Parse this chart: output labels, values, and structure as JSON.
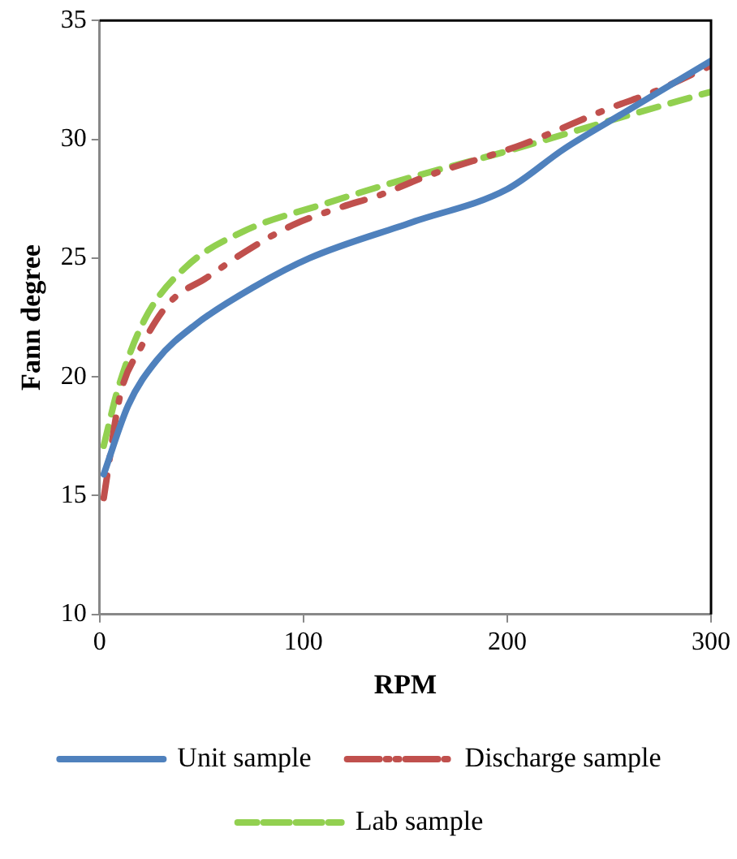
{
  "chart_data": {
    "type": "line",
    "xlabel": "RPM",
    "ylabel": "Fann degree",
    "xlim": [
      0,
      300
    ],
    "xticks": [
      0,
      100,
      200,
      300
    ],
    "ylim": [
      10,
      35
    ],
    "yticks": [
      10,
      15,
      20,
      25,
      30,
      35
    ],
    "grid": false,
    "legend": "bottom",
    "marker": "none",
    "series": [
      {
        "name": "Unit sample",
        "color": "#4f81bd",
        "line_style": "solid",
        "x": [
          2,
          14,
          28,
          47,
          76,
          103,
          153,
          200,
          228,
          255,
          300
        ],
        "values": [
          15.9,
          18.8,
          20.7,
          22.2,
          23.8,
          25.0,
          26.5,
          27.9,
          29.6,
          31.0,
          33.3
        ]
      },
      {
        "name": "Discharge sample",
        "color": "#c0504d",
        "line_style": "dashdot",
        "x": [
          2,
          10,
          20,
          34,
          53,
          72,
          95,
          117,
          139,
          159,
          208,
          250,
          272,
          300
        ],
        "values": [
          14.9,
          19.2,
          21.2,
          23.1,
          24.2,
          25.3,
          26.4,
          27.1,
          27.7,
          28.4,
          29.8,
          31.3,
          32.0,
          33.1
        ]
      },
      {
        "name": "Lab sample",
        "color": "#92d050",
        "line_style": "dashed",
        "x": [
          2,
          9,
          22,
          42,
          70,
          111,
          153,
          200,
          255,
          300
        ],
        "values": [
          17.1,
          19.5,
          22.4,
          24.6,
          26.1,
          27.3,
          28.4,
          29.5,
          30.9,
          32.0
        ]
      }
    ]
  }
}
